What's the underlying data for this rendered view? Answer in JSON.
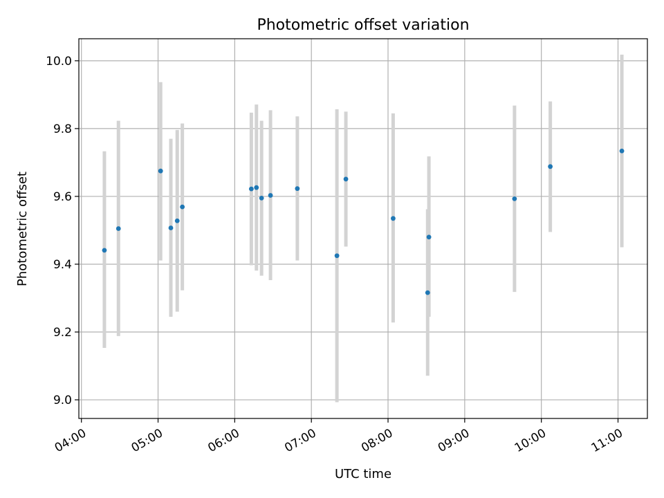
{
  "chart_data": {
    "type": "scatter",
    "title": "Photometric offset variation",
    "xlabel": "UTC time",
    "ylabel": "Photometric offset",
    "x_unit": "time (HH:MM UTC)",
    "xlim": [
      "03:58",
      "11:23"
    ],
    "ylim": [
      8.945,
      10.065
    ],
    "x_ticks": [
      "04:00",
      "05:00",
      "06:00",
      "07:00",
      "08:00",
      "09:00",
      "10:00",
      "11:00"
    ],
    "y_ticks": [
      9.0,
      9.2,
      9.4,
      9.6,
      9.8,
      10.0
    ],
    "y_tick_labels": [
      "9.0",
      "9.2",
      "9.4",
      "9.6",
      "9.8",
      "10.0"
    ],
    "grid": true,
    "x_tick_rotation": "30 degrees",
    "colors": {
      "point": "#1f77b4",
      "error_bar": "#d3d3d3",
      "grid": "#b0b0b0"
    },
    "points": [
      {
        "x": "04:18",
        "y": 9.441,
        "low": 9.153,
        "high": 9.733
      },
      {
        "x": "04:29",
        "y": 9.505,
        "low": 9.188,
        "high": 9.823
      },
      {
        "x": "05:02",
        "y": 9.675,
        "low": 9.411,
        "high": 9.937
      },
      {
        "x": "05:10",
        "y": 9.507,
        "low": 9.245,
        "high": 9.77
      },
      {
        "x": "05:15",
        "y": 9.528,
        "low": 9.26,
        "high": 9.796
      },
      {
        "x": "05:19",
        "y": 9.569,
        "low": 9.323,
        "high": 9.815
      },
      {
        "x": "06:13",
        "y": 9.622,
        "low": 9.397,
        "high": 9.847
      },
      {
        "x": "06:17",
        "y": 9.626,
        "low": 9.381,
        "high": 9.871
      },
      {
        "x": "06:21",
        "y": 9.595,
        "low": 9.366,
        "high": 9.823
      },
      {
        "x": "06:28",
        "y": 9.603,
        "low": 9.353,
        "high": 9.854
      },
      {
        "x": "06:49",
        "y": 9.623,
        "low": 9.411,
        "high": 9.836
      },
      {
        "x": "07:20",
        "y": 9.425,
        "low": 8.993,
        "high": 9.857
      },
      {
        "x": "07:27",
        "y": 9.651,
        "low": 9.452,
        "high": 9.85
      },
      {
        "x": "08:04",
        "y": 9.535,
        "low": 9.228,
        "high": 9.845
      },
      {
        "x": "08:31",
        "y": 9.316,
        "low": 9.071,
        "high": 9.562
      },
      {
        "x": "08:32",
        "y": 9.48,
        "low": 9.245,
        "high": 9.718
      },
      {
        "x": "09:39",
        "y": 9.593,
        "low": 9.318,
        "high": 9.868
      },
      {
        "x": "10:07",
        "y": 9.688,
        "low": 9.495,
        "high": 9.88
      },
      {
        "x": "11:03",
        "y": 9.734,
        "low": 9.45,
        "high": 10.018
      }
    ]
  }
}
